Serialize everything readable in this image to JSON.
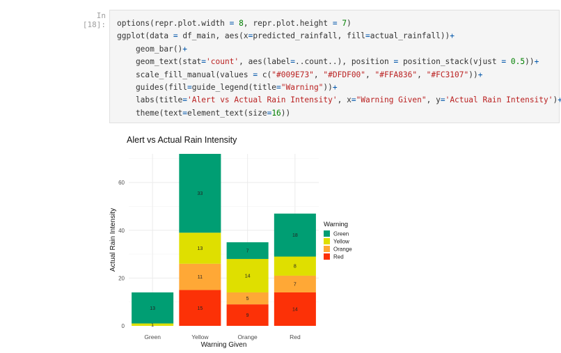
{
  "cell": {
    "prompt": "In [18]:",
    "code_lines": [
      [
        {
          "t": "options(repr.plot.width "
        },
        {
          "t": "=",
          "c": "o"
        },
        {
          "t": " "
        },
        {
          "t": "8",
          "c": "n"
        },
        {
          "t": ", repr.plot.height "
        },
        {
          "t": "=",
          "c": "o"
        },
        {
          "t": " "
        },
        {
          "t": "7",
          "c": "n"
        },
        {
          "t": ")"
        }
      ],
      [
        {
          "t": "ggplot(data "
        },
        {
          "t": "=",
          "c": "o"
        },
        {
          "t": " df_main, aes(x"
        },
        {
          "t": "=",
          "c": "o"
        },
        {
          "t": "predicted_rainfall, fill"
        },
        {
          "t": "=",
          "c": "o"
        },
        {
          "t": "actual_rainfall))"
        },
        {
          "t": "+",
          "c": "o"
        }
      ],
      [
        {
          "t": "    geom_bar()"
        },
        {
          "t": "+",
          "c": "o"
        }
      ],
      [
        {
          "t": "    geom_text(stat"
        },
        {
          "t": "=",
          "c": "o"
        },
        {
          "t": "'count'",
          "c": "s"
        },
        {
          "t": ", aes(label"
        },
        {
          "t": "=",
          "c": "o"
        },
        {
          "t": "..count..), position "
        },
        {
          "t": "=",
          "c": "o"
        },
        {
          "t": " position_stack(vjust "
        },
        {
          "t": "=",
          "c": "o"
        },
        {
          "t": " "
        },
        {
          "t": "0.5",
          "c": "n"
        },
        {
          "t": "))"
        },
        {
          "t": "+",
          "c": "o"
        }
      ],
      [
        {
          "t": "    scale_fill_manual(values "
        },
        {
          "t": "=",
          "c": "o"
        },
        {
          "t": " c("
        },
        {
          "t": "\"#009E73\"",
          "c": "s"
        },
        {
          "t": ", "
        },
        {
          "t": "\"#DFDF00\"",
          "c": "s"
        },
        {
          "t": ", "
        },
        {
          "t": "\"#FFA836\"",
          "c": "s"
        },
        {
          "t": ", "
        },
        {
          "t": "\"#FC3107\"",
          "c": "s"
        },
        {
          "t": "))"
        },
        {
          "t": "+",
          "c": "o"
        }
      ],
      [
        {
          "t": "    guides(fill"
        },
        {
          "t": "=",
          "c": "o"
        },
        {
          "t": "guide_legend(title"
        },
        {
          "t": "=",
          "c": "o"
        },
        {
          "t": "\"Warning\"",
          "c": "s"
        },
        {
          "t": "))"
        },
        {
          "t": "+",
          "c": "o"
        }
      ],
      [
        {
          "t": "    labs(title"
        },
        {
          "t": "=",
          "c": "o"
        },
        {
          "t": "'Alert vs Actual Rain Intensity'",
          "c": "s"
        },
        {
          "t": ", x"
        },
        {
          "t": "=",
          "c": "o"
        },
        {
          "t": "\"Warning Given\"",
          "c": "s"
        },
        {
          "t": ", y"
        },
        {
          "t": "=",
          "c": "o"
        },
        {
          "t": "'Actual Rain Intensity'",
          "c": "s"
        },
        {
          "t": ")"
        },
        {
          "t": "+",
          "c": "o"
        }
      ],
      [
        {
          "t": "    theme(text"
        },
        {
          "t": "=",
          "c": "o"
        },
        {
          "t": "element_text(size"
        },
        {
          "t": "=",
          "c": "o"
        },
        {
          "t": "16",
          "c": "n"
        },
        {
          "t": "))"
        }
      ]
    ]
  },
  "chart_data": {
    "type": "bar",
    "stacked": true,
    "title": "Alert vs Actual Rain Intensity",
    "xlabel": "Warning Given",
    "ylabel": "Actual Rain Intensity",
    "ylim": [
      0,
      72
    ],
    "yticks": [
      0,
      20,
      40,
      60
    ],
    "grid": true,
    "legend": {
      "title": "Warning",
      "placement": "right"
    },
    "categories": [
      "Green",
      "Yellow",
      "Orange",
      "Red"
    ],
    "series": [
      {
        "name": "Green",
        "color": "#009E73",
        "values": [
          13,
          33,
          7,
          18
        ]
      },
      {
        "name": "Yellow",
        "color": "#DFDF00",
        "values": [
          1,
          13,
          14,
          8
        ]
      },
      {
        "name": "Orange",
        "color": "#FFA836",
        "values": [
          0,
          11,
          5,
          7
        ]
      },
      {
        "name": "Red",
        "color": "#FC3107",
        "values": [
          0,
          15,
          9,
          14
        ]
      }
    ]
  }
}
